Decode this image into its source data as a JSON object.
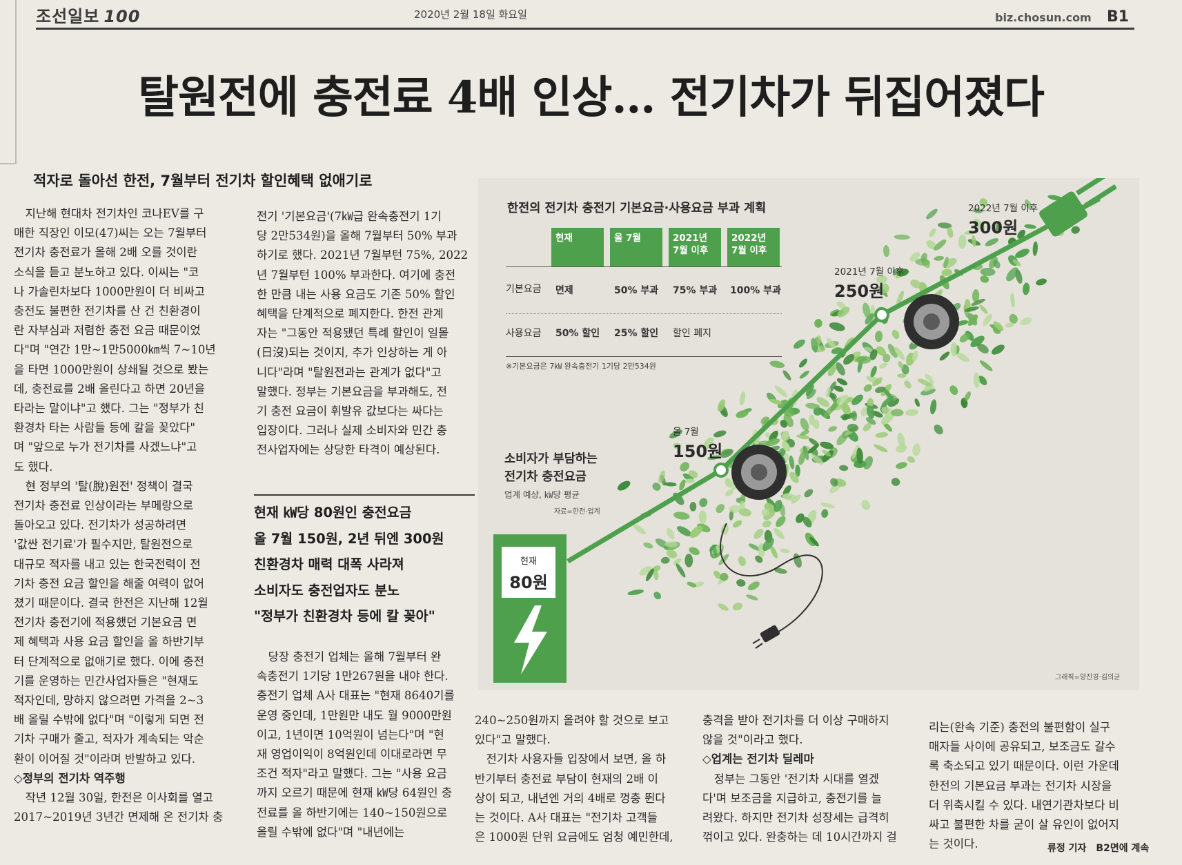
{
  "masthead": {
    "logo": "조선일보",
    "logo_mark": "100",
    "date": "2020년 2월 18일 화요일",
    "url": "biz.chosun.com",
    "page": "B1"
  },
  "headline": "탈원전에 충전료 4배 인상… 전기차가 뒤집어졌다",
  "subhead": "적자로 돌아선 한전, 7월부터 전기차 할인혜택 없애기로",
  "col1": [
    "　지난해 현대차 전기차인 코나EV를 구",
    "매한 직장인 이모(47)씨는 오는 7월부터",
    "전기차 충전료가 올해 2배 오를 것이란",
    "소식을 듣고 분노하고 있다. 이씨는 \"코",
    "나 가솔린차보다 1000만원이 더 비싸고",
    "충전도 불편한 전기차를 산 건 친환경이",
    "란 자부심과 저렴한 충전 요금 때문이었",
    "다\"며 \"연간 1만~1만5000㎞씩 7~10년",
    "을 타면 1000만원이 상쇄될 것으로 봤는",
    "데, 충전료를 2배 올린다고 하면 20년을",
    "타라는 말이냐\"고 했다. 그는 \"정부가 친",
    "환경차 타는 사람들 등에 칼을 꽂았다\"",
    "며 \"앞으로 누가 전기차를 사겠느냐\"고",
    "도 했다.",
    "　현 정부의 '탈(脫)원전' 정책이 결국",
    "전기차 충전료 인상이라는 부메랑으로",
    "돌아오고 있다. 전기차가 성공하려면",
    "'값싼 전기료'가 필수지만, 탈원전으로",
    "대규모 적자를 내고 있는 한국전력이 전",
    "기차 충전 요금 할인을 해줄 여력이 없어",
    "졌기 때문이다. 결국 한전은 지난해 12월",
    "전기차 충전기에 적용했던 기본요금 면",
    "제 혜택과 사용 요금 할인을 올 하반기부",
    "터 단계적으로 없애기로 했다. 이에 충전",
    "기를 운영하는 민간사업자들은 \"현재도",
    "적자인데, 망하지 않으려면 가격을 2~3",
    "배 올릴 수밖에 없다\"며 \"이렇게 되면 전",
    "기차 구매가 줄고, 적자가 계속되는 악순",
    "환이 이어질 것\"이라며 반발하고 있다.",
    "◇정부의 전기차 역주행",
    "　작년 12월 30일, 한전은 이사회를 열고",
    "2017~2019년 3년간 면제해 온 전기차 충"
  ],
  "col2a": [
    "전기 '기본요금'(7㎾급 완속충전기 1기",
    "당 2만534원)을 올해 7월부터 50% 부과",
    "하기로 했다. 2021년 7월부턴 75%, 2022",
    "년 7월부턴 100% 부과한다. 여기에 충전",
    "한 만큼 내는 사용 요금도 기존 50% 할인",
    "혜택을 단계적으로 폐지한다. 한전 관계",
    "자는 \"그동안 적용됐던 특례 할인이 일몰",
    "(日沒)되는 것이지, 추가 인상하는 게 아",
    "니다\"라며 \"탈원전과는 관계가 없다\"고",
    "말했다. 정부는 기본요금을 부과해도, 전",
    "기 충전 요금이 휘발유 값보다는 싸다는",
    "입장이다. 그러나 실제 소비자와 민간 충",
    "전사업자에는 상당한 타격이 예상된다."
  ],
  "deck": [
    "현재 ㎾당 80원인 충전요금",
    "올 7월 150원, 2년 뒤엔 300원",
    "친환경차 매력 대폭 사라져",
    "소비자도 충전업자도 분노",
    "\"정부가 친환경차 등에 칼 꽂아\""
  ],
  "col2b": [
    "　당장 충전기 업체는 올해 7월부터 완",
    "속충전기 1기당 1만267원을 내야 한다.",
    "충전기 업체 A사 대표는 \"현재 8640기를",
    "운영 중인데, 1만원만 내도 월 9000만원",
    "이고, 1년이면 10억원이 넘는다\"며 \"현",
    "재 영업이익이 8억원인데 이대로라면 무",
    "조건 적자\"라고 말했다. 그는 \"사용 요금",
    "까지 오르기 때문에 현재 ㎾당 64원인 충",
    "전료를 올 하반기에는 140~150원으로",
    "올릴 수밖에 없다\"며 \"내년에는"
  ],
  "col3": [
    "240~250원까지 올려야 할 것으로 보고",
    "있다\"고 말했다.",
    "　전기차 사용자들 입장에서 보면, 올 하",
    "반기부터 충전료 부담이 현재의 2배 이",
    "상이 되고, 내년엔 거의 4배로 껑충 뛴다",
    "는 것이다. A사 대표는 \"전기차 고객들",
    "은 1000원 단위 요금에도 엄청 예민한데,"
  ],
  "col4": [
    "충격을 받아 전기차를 더 이상 구매하지",
    "않을 것\"이라고 했다.",
    "◇업계는 전기차 딜레마",
    "　정부는 그동안 '전기차 시대를 열겠",
    "다'며 보조금을 지급하고, 충전기를 늘",
    "려왔다. 하지만 전기차 성장세는 급격히",
    "꺾이고 있다. 완충하는 데 10시간까지 걸"
  ],
  "col5": [
    "리는(완속 기준) 충전의 불편함이 실구",
    "매자들 사이에 공유되고, 보조금도 갈수",
    "록 축소되고 있기 때문이다. 이런 가운데",
    "한전의 기본요금 부과는 전기차 시장을",
    "더 위축시킬 수 있다. 내연기관차보다 비",
    "싸고 불편한 차를 굳이 살 유인이 없어지",
    "는 것이다."
  ],
  "byline": {
    "reporter": "류정 기자",
    "cont": "B2면에 계속"
  },
  "graphic": {
    "title": "한전의 전기차 충전기 기본요금·사용요금 부과 계획",
    "table": {
      "headers": [
        [
          "현재",
          ""
        ],
        [
          "올 7월",
          ""
        ],
        [
          "2021년",
          "7월 이후"
        ],
        [
          "2022년",
          "7월 이후"
        ]
      ],
      "rows": [
        {
          "label": "기본요금",
          "cells": [
            "면제",
            "50% 부과",
            "75% 부과",
            "100% 부과"
          ]
        },
        {
          "label": "사용요금",
          "cells": [
            "50% 할인",
            "25% 할인",
            "할인 폐지",
            ""
          ]
        }
      ],
      "note": "※기본요금은 7㎾ 완속충전기 1기당 2만534원"
    },
    "consumer": {
      "title1": "소비자가 부담하는",
      "title2": "전기차 충전요금",
      "sub": "업계 예상, ㎾당 평균",
      "source": "자료=한전·업계"
    },
    "points": [
      {
        "when": "현재",
        "price": "80원"
      },
      {
        "when": "올 7월",
        "price": "150원"
      },
      {
        "when": "2021년 7월 이후",
        "price": "250원"
      },
      {
        "when": "2022년 7월 이후",
        "price": "300원"
      }
    ],
    "credit": "그래픽=양진경·김의균",
    "colors": {
      "green": "#4fa04d",
      "leaf_dark": "#3f8a3a",
      "leaf_light": "#9acb75"
    }
  }
}
